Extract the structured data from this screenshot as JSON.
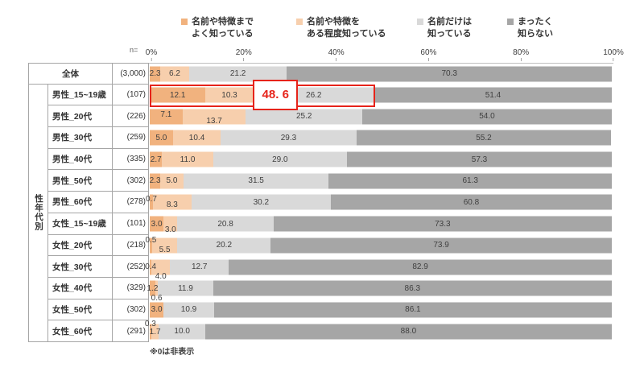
{
  "legend": {
    "items": [
      {
        "line1": "名前や特徴まで",
        "line2": "よく知っている",
        "color": "#f1b27e"
      },
      {
        "line1": "名前や特徴を",
        "line2": "ある程度知っている",
        "color": "#f7cfad"
      },
      {
        "line1": "名前だけは",
        "line2": "知っている",
        "color": "#d9d9d9"
      },
      {
        "line1": "まったく",
        "line2": "知らない",
        "color": "#a6a6a6"
      }
    ]
  },
  "axis": {
    "n_label": "n=",
    "ticks": [
      "0%",
      "20%",
      "40%",
      "60%",
      "80%",
      "100%"
    ]
  },
  "table": {
    "group_label": "性年代別"
  },
  "footnote": "※0は非表示",
  "highlight": {
    "label": "48. 6",
    "span_pct": 48.6,
    "color": "#e6231a",
    "row_label": "男性_15~19歳"
  },
  "chart_data": {
    "type": "bar",
    "orientation": "horizontal",
    "stacked": true,
    "xlim": [
      0,
      100
    ],
    "grid": false,
    "legend_position": "top",
    "series": [
      "名前や特徴までよく知っている",
      "名前や特徴をある程度知っている",
      "名前だけは知っている",
      "まったく知らない"
    ],
    "colors": [
      "#f1b27e",
      "#f7cfad",
      "#d9d9d9",
      "#a6a6a6"
    ],
    "rows": [
      {
        "label": "全体",
        "n": "(3,000)",
        "values": [
          2.3,
          6.2,
          21.2,
          70.3
        ],
        "dy": [
          0,
          0,
          0,
          0
        ],
        "total": true
      },
      {
        "label": "男性_15~19歳",
        "n": "(107)",
        "values": [
          12.1,
          10.3,
          26.2,
          51.4
        ],
        "dy": [
          0,
          0,
          0,
          0
        ],
        "highlight": true
      },
      {
        "label": "男性_20代",
        "n": "(226)",
        "values": [
          7.1,
          13.7,
          25.2,
          54.0
        ],
        "dy": [
          -2,
          6,
          0,
          0
        ]
      },
      {
        "label": "男性_30代",
        "n": "(259)",
        "values": [
          5.0,
          10.4,
          29.3,
          55.2
        ],
        "dy": [
          0,
          0,
          0,
          0
        ]
      },
      {
        "label": "男性_40代",
        "n": "(335)",
        "values": [
          2.7,
          11.0,
          29.0,
          57.3
        ],
        "dy": [
          0,
          0,
          0,
          0
        ]
      },
      {
        "label": "男性_50代",
        "n": "(302)",
        "values": [
          2.3,
          5.0,
          31.5,
          61.3
        ],
        "dy": [
          0,
          0,
          0,
          0
        ]
      },
      {
        "label": "男性_60代",
        "n": "(278)",
        "values": [
          0.7,
          8.3,
          30.2,
          60.8
        ],
        "dy": [
          -4,
          3,
          0,
          0
        ]
      },
      {
        "label": "女性_15~19歳",
        "n": "(101)",
        "values": [
          3.0,
          3.0,
          20.8,
          73.3
        ],
        "dy": [
          0,
          7,
          0,
          0
        ]
      },
      {
        "label": "女性_20代",
        "n": "(218)",
        "values": [
          0.5,
          5.5,
          20.2,
          73.9
        ],
        "dy": [
          -6,
          6,
          0,
          0
        ]
      },
      {
        "label": "女性_30代",
        "n": "(252)",
        "values": [
          0.4,
          4.0,
          12.7,
          82.9
        ],
        "dy": [
          0,
          12,
          0,
          0
        ]
      },
      {
        "label": "女性_40代",
        "n": "(329)",
        "values": [
          1.2,
          0.6,
          11.9,
          86.3
        ],
        "dy": [
          0,
          12,
          0,
          0
        ]
      },
      {
        "label": "女性_50代",
        "n": "(302)",
        "values": [
          3.0,
          0,
          10.9,
          86.1
        ],
        "dy": [
          0,
          0,
          0,
          0
        ]
      },
      {
        "label": "女性_60代",
        "n": "(291)",
        "values": [
          0.3,
          1.7,
          10.0,
          88.0
        ],
        "dy": [
          -9,
          1,
          0,
          0
        ]
      }
    ]
  }
}
